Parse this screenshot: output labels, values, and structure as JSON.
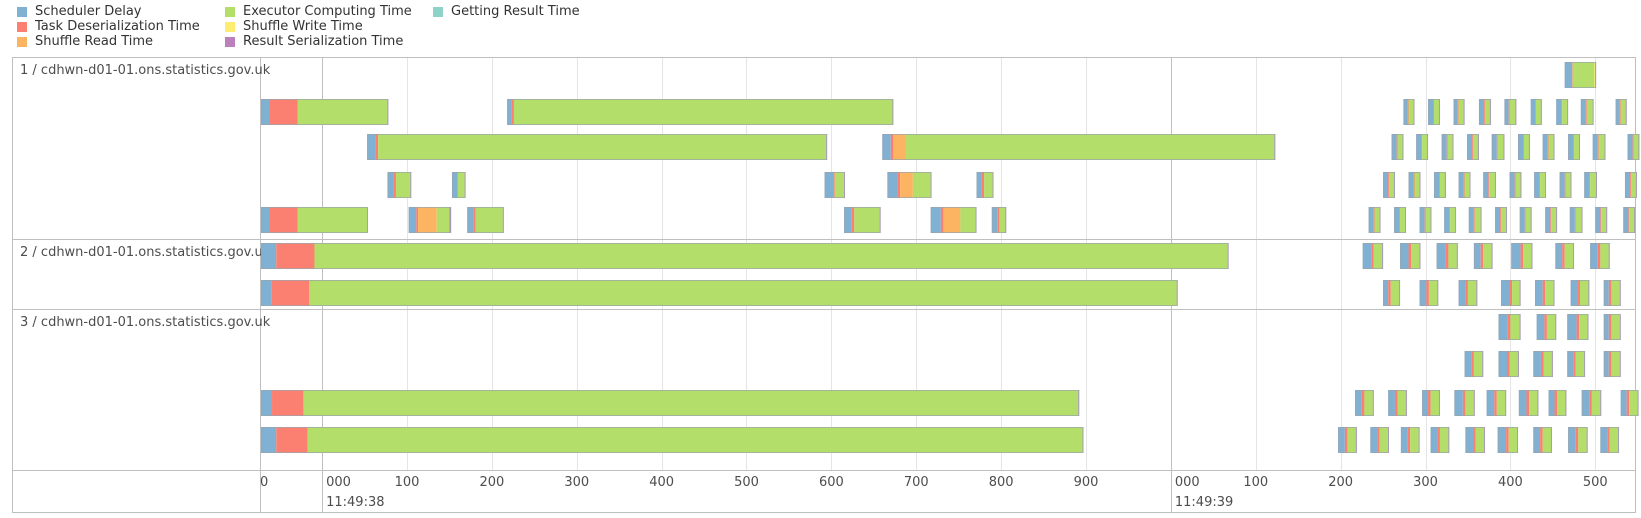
{
  "legend": [
    {
      "label": "Scheduler Delay",
      "color": "#80B1D3"
    },
    {
      "label": "Task Deserialization Time",
      "color": "#FB8072"
    },
    {
      "label": "Shuffle Read Time",
      "color": "#FDB462"
    },
    {
      "label": "Executor Computing Time",
      "color": "#B3DE69"
    },
    {
      "label": "Shuffle Write Time",
      "color": "#FFED6F"
    },
    {
      "label": "Result Serialization Time",
      "color": "#BC80BD"
    },
    {
      "label": "Getting Result Time",
      "color": "#8DD3C7"
    }
  ],
  "chart_data": {
    "type": "timeline",
    "x_range_ms": [
      -72,
      1548
    ],
    "major_ticks": [
      {
        "ms": 0,
        "line1": "000",
        "line2": "11:49:38"
      },
      {
        "ms": 1000,
        "line1": "000",
        "line2": "11:49:39"
      }
    ],
    "minor_ticks": [
      {
        "ms": -72,
        "label": "0"
      },
      {
        "ms": 100,
        "label": "100"
      },
      {
        "ms": 200,
        "label": "200"
      },
      {
        "ms": 300,
        "label": "300"
      },
      {
        "ms": 400,
        "label": "400"
      },
      {
        "ms": 500,
        "label": "500"
      },
      {
        "ms": 600,
        "label": "600"
      },
      {
        "ms": 700,
        "label": "700"
      },
      {
        "ms": 800,
        "label": "800"
      },
      {
        "ms": 900,
        "label": "900"
      },
      {
        "ms": 1100,
        "label": "100"
      },
      {
        "ms": 1200,
        "label": "200"
      },
      {
        "ms": 1300,
        "label": "300"
      },
      {
        "ms": 1400,
        "label": "400"
      },
      {
        "ms": 1500,
        "label": "500"
      }
    ],
    "groups": [
      {
        "label": "1 / cdhwn-d01-01.ons.statistics.gov.uk",
        "lanes": [
          [
            [
              1464,
              9,
              0,
              2,
              24,
              1,
              1
            ]
          ],
          [
            [
              -72,
              10,
              33,
              0,
              106,
              0,
              1
            ],
            [
              218,
              5,
              3,
              0,
              446,
              0,
              1
            ],
            [
              1274,
              5,
              1,
              0,
              6,
              0,
              1
            ],
            [
              1303,
              6,
              1,
              0,
              6,
              0,
              1
            ],
            [
              1333,
              5,
              1,
              0,
              6,
              0,
              1
            ],
            [
              1363,
              6,
              1,
              0,
              6,
              0,
              1
            ],
            [
              1393,
              5,
              1,
              0,
              7,
              0,
              1
            ],
            [
              1424,
              5,
              1,
              0,
              6,
              0,
              1
            ],
            [
              1454,
              6,
              1,
              0,
              6,
              0,
              1
            ],
            [
              1483,
              6,
              1,
              0,
              7,
              0,
              1
            ],
            [
              1524,
              5,
              1,
              0,
              6,
              0,
              1
            ]
          ],
          [
            [
              53,
              10,
              3,
              0,
              528,
              0,
              1
            ],
            [
              660,
              10,
              3,
              15,
              434,
              0,
              1
            ],
            [
              1260,
              6,
              1,
              0,
              6,
              0,
              1
            ],
            [
              1289,
              6,
              1,
              0,
              6,
              0,
              1
            ],
            [
              1319,
              6,
              1,
              0,
              6,
              0,
              1
            ],
            [
              1349,
              6,
              1,
              0,
              6,
              0,
              1
            ],
            [
              1378,
              6,
              1,
              0,
              7,
              0,
              1
            ],
            [
              1409,
              6,
              1,
              0,
              6,
              0,
              1
            ],
            [
              1438,
              6,
              1,
              0,
              6,
              0,
              1
            ],
            [
              1468,
              6,
              1,
              0,
              6,
              0,
              1
            ],
            [
              1497,
              6,
              1,
              0,
              7,
              0,
              1
            ],
            [
              1538,
              6,
              1,
              0,
              6,
              0,
              1
            ]
          ],
          [
            [
              77,
              7,
              3,
              0,
              17,
              0,
              1
            ],
            [
              153,
              6,
              1,
              0,
              8,
              0,
              1
            ],
            [
              592,
              10,
              2,
              0,
              11,
              0,
              1
            ],
            [
              666,
              12,
              3,
              15,
              21,
              0,
              1
            ],
            [
              771,
              6,
              3,
              0,
              10,
              0,
              1
            ],
            [
              1250,
              6,
              1,
              0,
              6,
              0,
              1
            ],
            [
              1280,
              6,
              1,
              0,
              6,
              0,
              1
            ],
            [
              1310,
              6,
              1,
              0,
              6,
              0,
              1
            ],
            [
              1339,
              6,
              1,
              0,
              6,
              0,
              1
            ],
            [
              1368,
              6,
              1,
              0,
              7,
              0,
              1
            ],
            [
              1399,
              6,
              1,
              0,
              6,
              0,
              1
            ],
            [
              1428,
              6,
              1,
              0,
              6,
              0,
              1
            ],
            [
              1458,
              6,
              1,
              0,
              6,
              0,
              1
            ],
            [
              1487,
              6,
              1,
              0,
              7,
              0,
              1
            ],
            [
              1535,
              6,
              1,
              0,
              6,
              0,
              1
            ]
          ],
          [
            [
              -72,
              10,
              33,
              0,
              82,
              0,
              1
            ],
            [
              102,
              9,
              2,
              22,
              15,
              0,
              2
            ],
            [
              171,
              7,
              3,
              0,
              32,
              0,
              1
            ],
            [
              615,
              9,
              3,
              0,
              30,
              0,
              1
            ],
            [
              717,
              12,
              3,
              20,
              18,
              0,
              1
            ],
            [
              789,
              7,
              2,
              0,
              7,
              0,
              1
            ],
            [
              1233,
              6,
              1,
              0,
              6,
              0,
              1
            ],
            [
              1263,
              6,
              1,
              0,
              6,
              0,
              1
            ],
            [
              1293,
              6,
              1,
              0,
              6,
              0,
              1
            ],
            [
              1322,
              6,
              1,
              0,
              6,
              0,
              1
            ],
            [
              1351,
              6,
              1,
              0,
              7,
              0,
              1
            ],
            [
              1382,
              6,
              1,
              0,
              6,
              0,
              1
            ],
            [
              1411,
              6,
              1,
              0,
              6,
              0,
              1
            ],
            [
              1441,
              6,
              1,
              0,
              6,
              0,
              1
            ],
            [
              1470,
              6,
              1,
              0,
              7,
              0,
              1
            ],
            [
              1500,
              6,
              1,
              0,
              6,
              0,
              1
            ],
            [
              1533,
              6,
              1,
              0,
              6,
              0,
              1
            ]
          ]
        ]
      },
      {
        "label": "2 / cdhwn-d01-01.ons.statistics.gov.uk",
        "lanes": [
          [
            [
              -72,
              18,
              45,
              0,
              1076,
              0,
              1
            ],
            [
              1226,
              10,
              3,
              0,
              10,
              0,
              1
            ],
            [
              1270,
              10,
              3,
              0,
              10,
              0,
              1
            ],
            [
              1313,
              11,
              3,
              0,
              10,
              0,
              1
            ],
            [
              1357,
              8,
              3,
              0,
              10,
              0,
              1
            ],
            [
              1401,
              11,
              3,
              0,
              10,
              0,
              1
            ],
            [
              1453,
              8,
              3,
              0,
              10,
              0,
              1
            ],
            [
              1494,
              9,
              3,
              0,
              10,
              0,
              1
            ]
          ],
          [
            [
              -72,
              12,
              45,
              0,
              1022,
              0,
              1
            ],
            [
              1250,
              6,
              3,
              0,
              10,
              0,
              1
            ],
            [
              1293,
              8,
              3,
              0,
              10,
              0,
              1
            ],
            [
              1339,
              8,
              3,
              0,
              10,
              0,
              1
            ],
            [
              1389,
              10,
              3,
              0,
              9,
              0,
              1
            ],
            [
              1429,
              9,
              3,
              0,
              10,
              0,
              1
            ],
            [
              1471,
              8,
              3,
              0,
              10,
              0,
              1
            ],
            [
              1510,
              6,
              3,
              0,
              10,
              0,
              1
            ]
          ]
        ]
      },
      {
        "label": "3 / cdhwn-d01-01.ons.statistics.gov.uk",
        "lanes": [
          [
            [
              1386,
              11,
              3,
              0,
              11,
              0,
              1
            ],
            [
              1431,
              9,
              3,
              0,
              10,
              0,
              1
            ],
            [
              1467,
              11,
              3,
              0,
              10,
              0,
              1
            ],
            [
              1510,
              6,
              3,
              0,
              10,
              0,
              1
            ]
          ],
          [
            [
              1346,
              8,
              3,
              0,
              10,
              0,
              1
            ],
            [
              1386,
              10,
              3,
              0,
              10,
              0,
              1
            ],
            [
              1427,
              9,
              3,
              0,
              10,
              0,
              1
            ],
            [
              1467,
              7,
              3,
              0,
              10,
              0,
              1
            ],
            [
              1510,
              6,
              3,
              0,
              10,
              0,
              1
            ]
          ],
          [
            [
              -72,
              13,
              37,
              0,
              913,
              0,
              1
            ],
            [
              1217,
              8,
              3,
              0,
              10,
              0,
              1
            ],
            [
              1256,
              8,
              3,
              0,
              10,
              0,
              1
            ],
            [
              1296,
              7,
              3,
              0,
              10,
              0,
              1
            ],
            [
              1334,
              10,
              3,
              0,
              10,
              0,
              1
            ],
            [
              1372,
              9,
              3,
              0,
              10,
              0,
              1
            ],
            [
              1410,
              9,
              3,
              0,
              10,
              0,
              1
            ],
            [
              1445,
              7,
              3,
              0,
              10,
              0,
              1
            ],
            [
              1484,
              9,
              3,
              0,
              10,
              0,
              1
            ],
            [
              1530,
              7,
              3,
              0,
              10,
              0,
              1
            ]
          ],
          [
            [
              -72,
              18,
              37,
              0,
              913,
              0,
              1
            ],
            [
              1197,
              8,
              3,
              0,
              10,
              0,
              1
            ],
            [
              1235,
              8,
              3,
              0,
              10,
              0,
              1
            ],
            [
              1271,
              8,
              3,
              0,
              10,
              0,
              1
            ],
            [
              1306,
              8,
              3,
              0,
              10,
              0,
              1
            ],
            [
              1347,
              9,
              3,
              0,
              10,
              0,
              1
            ],
            [
              1385,
              10,
              3,
              0,
              10,
              0,
              1
            ],
            [
              1427,
              8,
              3,
              0,
              10,
              0,
              1
            ],
            [
              1468,
              9,
              3,
              0,
              10,
              0,
              1
            ],
            [
              1506,
              8,
              3,
              0,
              10,
              0,
              1
            ]
          ]
        ]
      }
    ]
  }
}
